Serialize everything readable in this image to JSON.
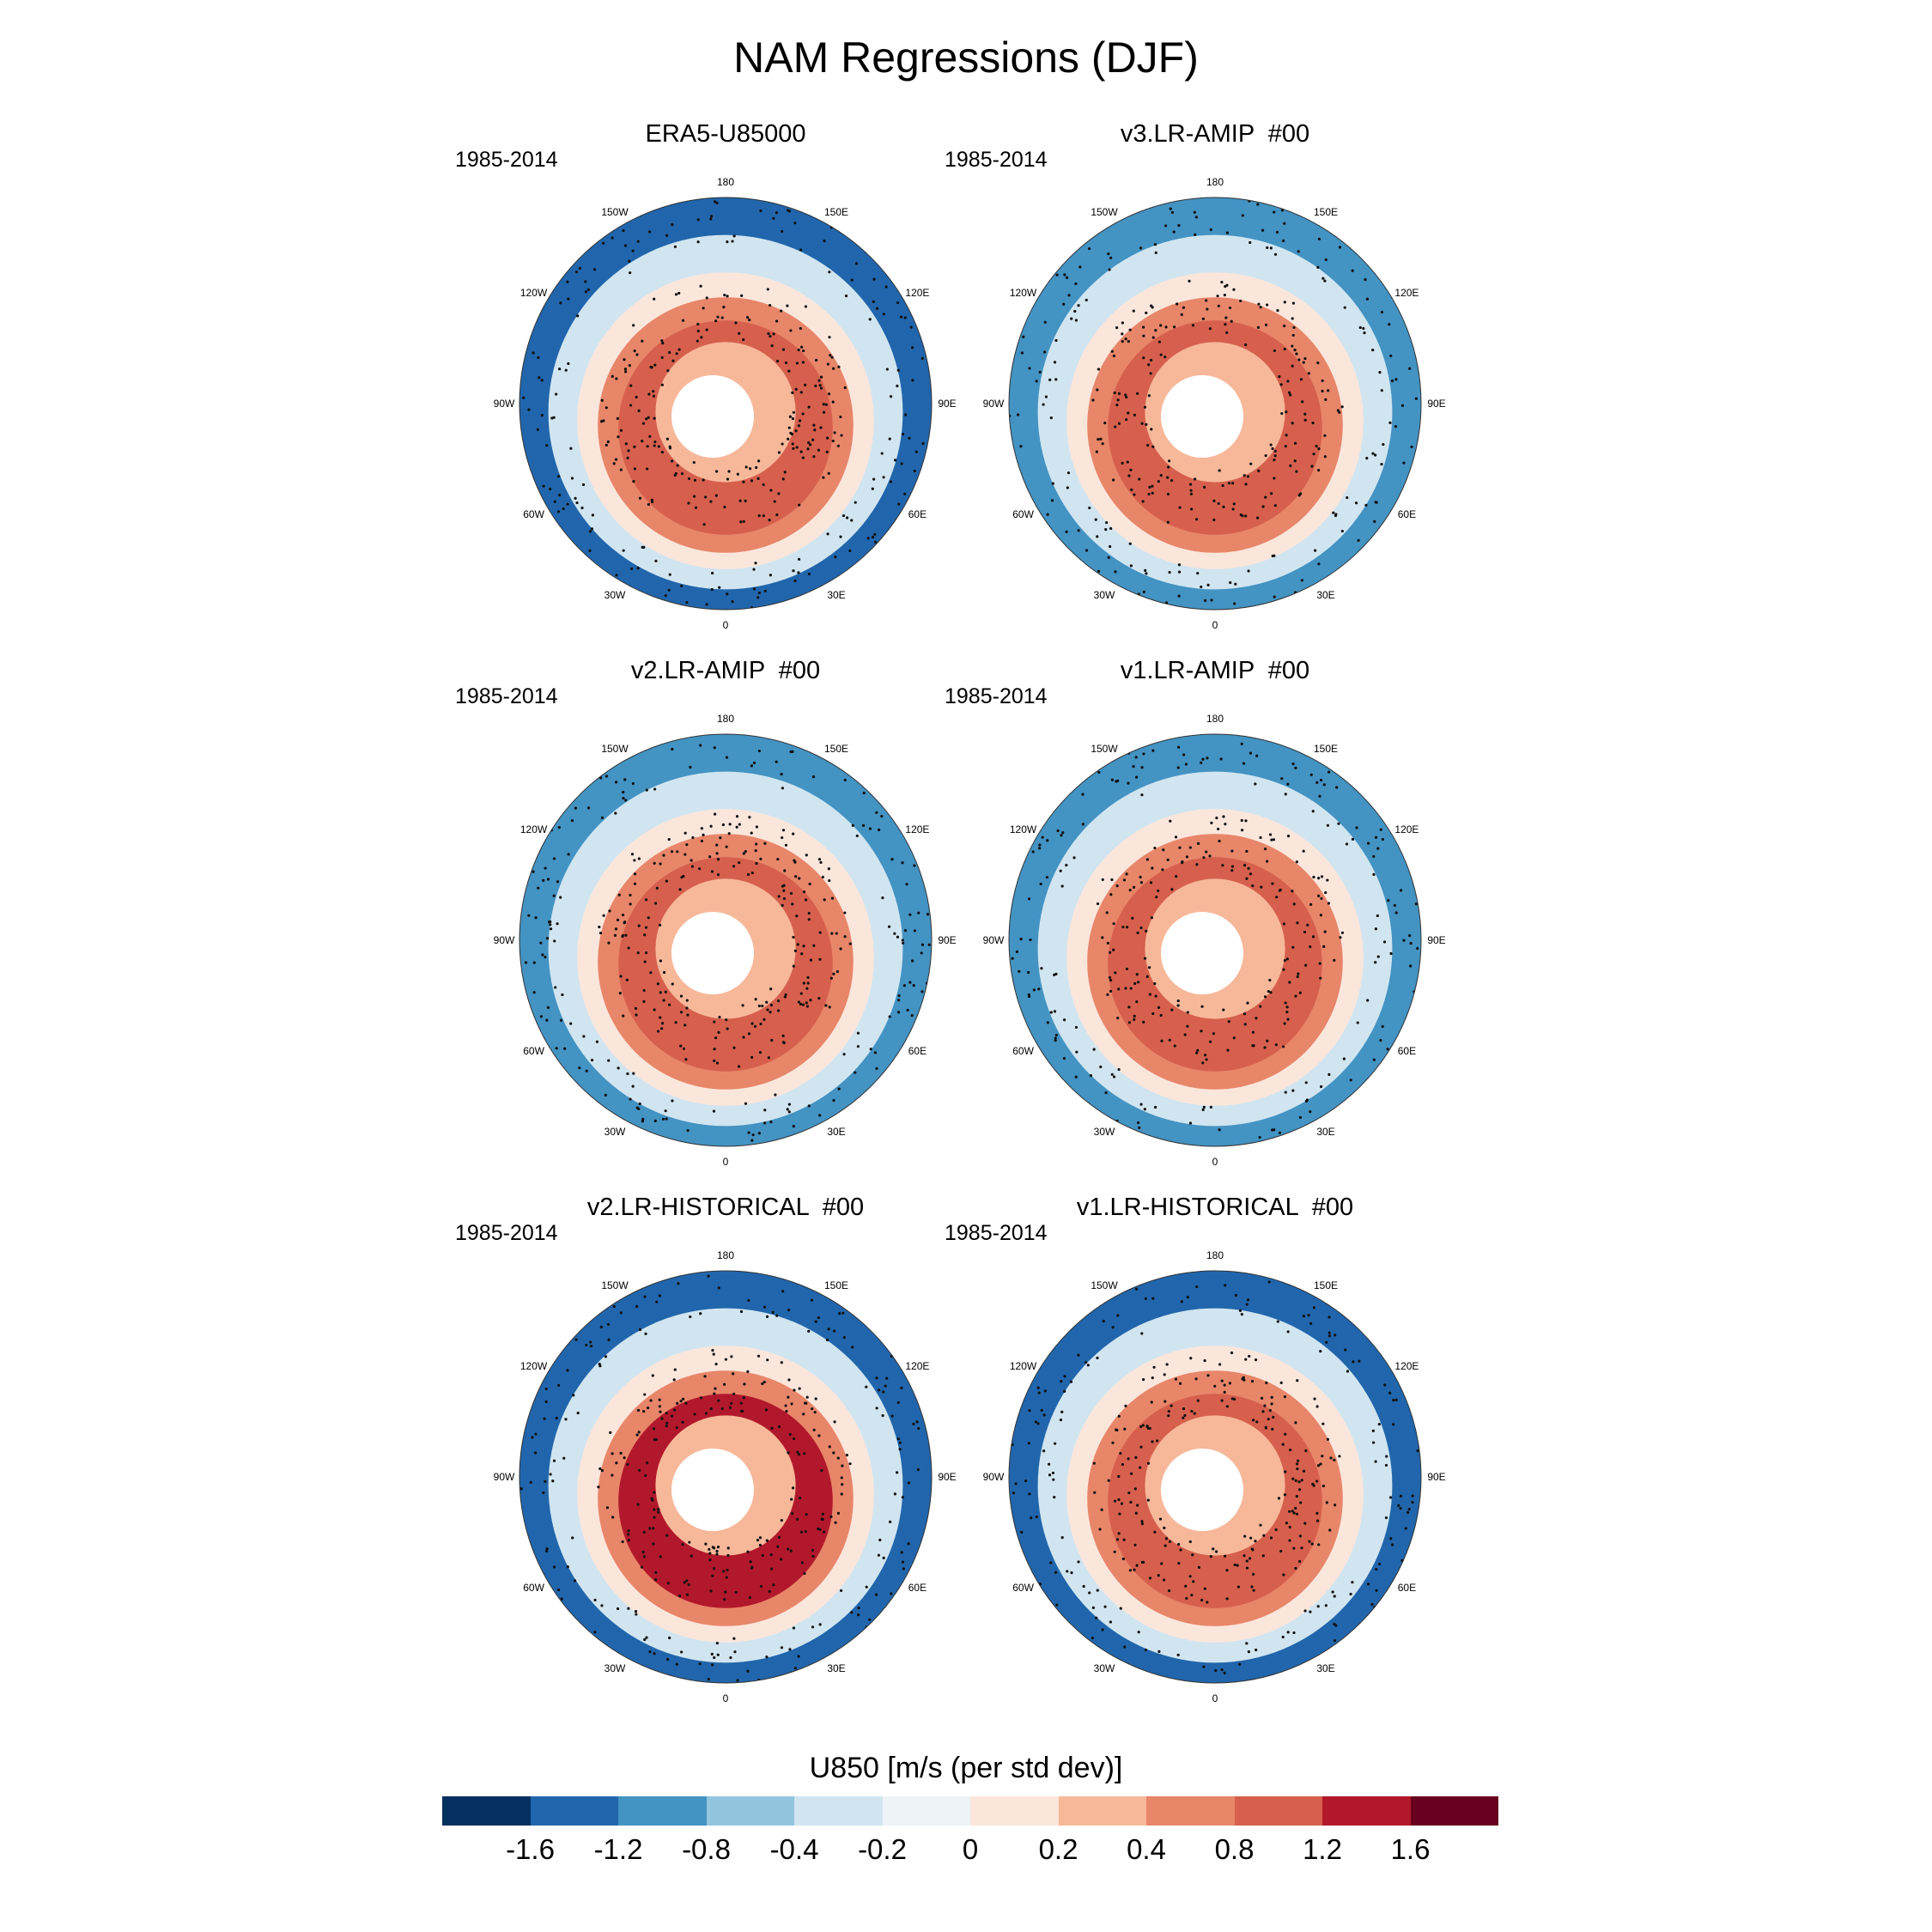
{
  "title": "NAM Regressions (DJF)",
  "period": "1985-2014",
  "lon_labels": [
    "180",
    "150E",
    "120E",
    "90E",
    "60E",
    "30E",
    "0",
    "30W",
    "60W",
    "90W",
    "120W",
    "150W"
  ],
  "panels": [
    {
      "title": "ERA5-U85000",
      "period": "1985-2014",
      "ring_level": 9,
      "outer_level": 1
    },
    {
      "title": "v3.LR-AMIP  #00",
      "period": "1985-2014",
      "ring_level": 9,
      "outer_level": 2
    },
    {
      "title": "v2.LR-AMIP  #00",
      "period": "1985-2014",
      "ring_level": 9,
      "outer_level": 2
    },
    {
      "title": "v1.LR-AMIP  #00",
      "period": "1985-2014",
      "ring_level": 9,
      "outer_level": 2
    },
    {
      "title": "v2.LR-HISTORICAL  #00",
      "period": "1985-2014",
      "ring_level": 10,
      "outer_level": 1
    },
    {
      "title": "v1.LR-HISTORICAL  #00",
      "period": "1985-2014",
      "ring_level": 9,
      "outer_level": 1
    }
  ],
  "colorbar": {
    "title": "U850 [m/s (per std dev)]",
    "colors": [
      "#053061",
      "#2166ac",
      "#4393c3",
      "#92c5de",
      "#d1e5f0",
      "#eef3f7",
      "#fbe6dc",
      "#f7b89a",
      "#e8866a",
      "#d6604d",
      "#b2182b",
      "#67001f"
    ],
    "labels": [
      "-1.6",
      "-1.2",
      "-0.8",
      "-0.4",
      "-0.2",
      "0",
      "0.2",
      "0.4",
      "0.8",
      "1.2",
      "1.6"
    ]
  }
}
